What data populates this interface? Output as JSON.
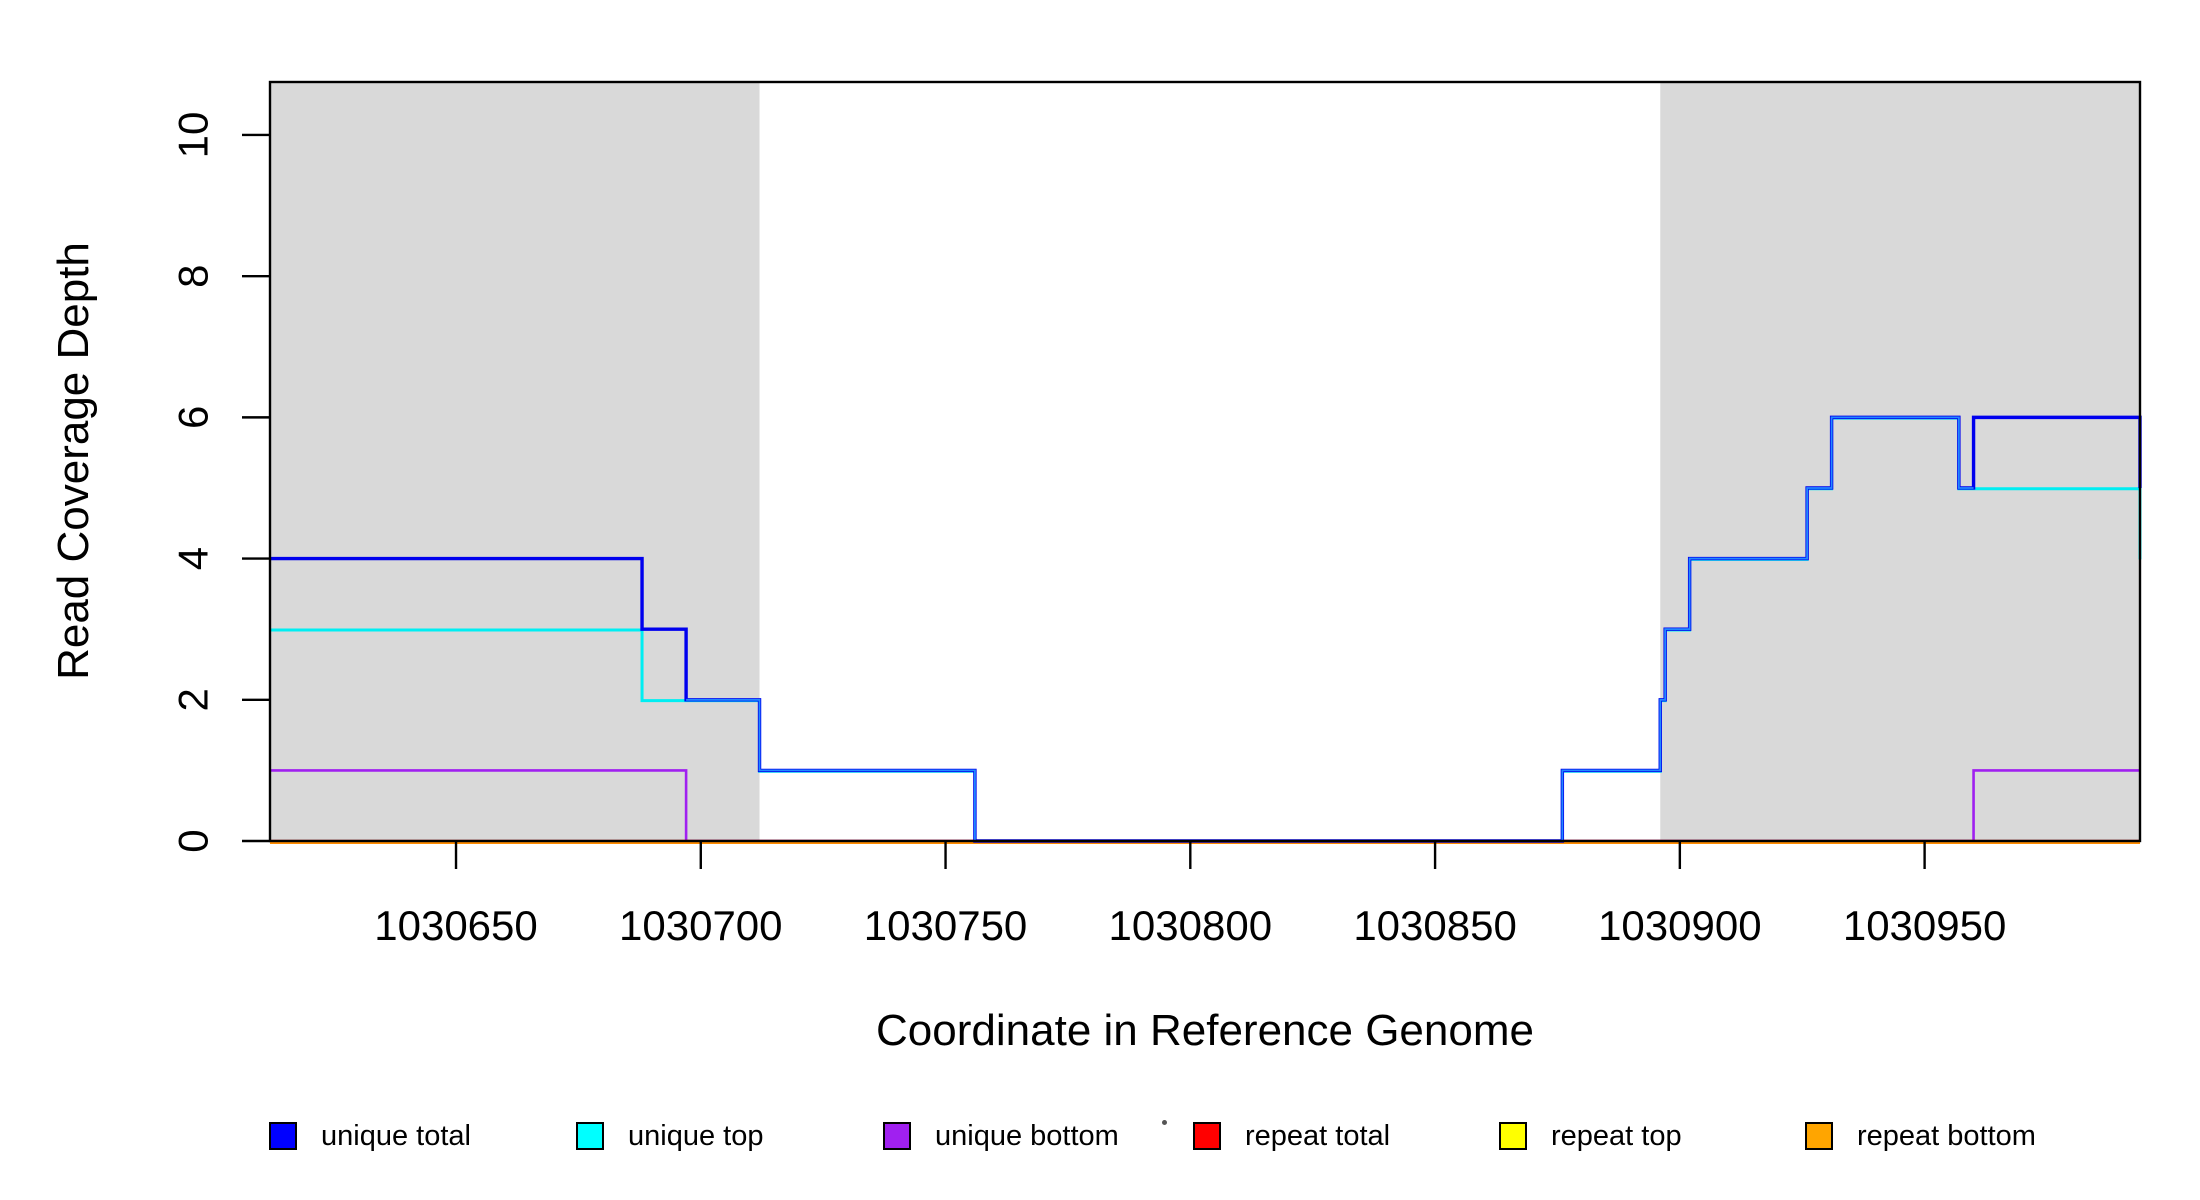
{
  "chart_data": {
    "type": "line",
    "subtype": "step",
    "title": "",
    "xlabel": "Coordinate in Reference Genome",
    "ylabel": "Read Coverage Depth",
    "xlim": [
      1030612,
      1030994
    ],
    "ymax": 10.75,
    "grid": false,
    "legend_position": "bottom",
    "x_ticks": {
      "values": [
        1030650,
        1030700,
        1030750,
        1030800,
        1030850,
        1030900,
        1030950
      ],
      "labels": [
        "1030650",
        "1030700",
        "1030750",
        "1030800",
        "1030850",
        "1030900",
        "1030950"
      ]
    },
    "y_ticks": {
      "values": [
        0,
        2,
        4,
        6,
        8,
        10
      ],
      "labels": [
        "0",
        "2",
        "4",
        "6",
        "8",
        "10"
      ]
    },
    "shade_color": "#D9D9D9",
    "shaded_regions": [
      {
        "x0": 1030612,
        "x1": 1030712
      },
      {
        "x0": 1030896,
        "x1": 1030994
      }
    ],
    "overlap_color": "#2288FF",
    "series": [
      {
        "name": "unique total",
        "color": "#0000EE",
        "width": 3.4,
        "dy": 0,
        "steps": [
          [
            1030612,
            4
          ],
          [
            1030688,
            3
          ],
          [
            1030697,
            2
          ],
          [
            1030712,
            1
          ],
          [
            1030756,
            0
          ],
          [
            1030876,
            1
          ],
          [
            1030896,
            2
          ],
          [
            1030897,
            3
          ],
          [
            1030902,
            4
          ],
          [
            1030926,
            5
          ],
          [
            1030931,
            6
          ],
          [
            1030957,
            5
          ],
          [
            1030960,
            6
          ],
          [
            1030994,
            5
          ]
        ]
      },
      {
        "name": "unique top",
        "color": "#00EEF2",
        "width": 3.0,
        "dy": 0.8,
        "steps": [
          [
            1030612,
            3
          ],
          [
            1030688,
            2
          ],
          [
            1030712,
            1
          ],
          [
            1030756,
            0
          ],
          [
            1030876,
            1
          ],
          [
            1030896,
            2
          ],
          [
            1030897,
            3
          ],
          [
            1030902,
            4
          ],
          [
            1030926,
            5
          ],
          [
            1030931,
            6
          ],
          [
            1030957,
            5
          ],
          [
            1030994,
            4
          ]
        ]
      },
      {
        "name": "unique bottom",
        "color": "#A020F0",
        "width": 2.6,
        "dy": 0,
        "steps": [
          [
            1030612,
            1
          ],
          [
            1030697,
            0
          ],
          [
            1030960,
            1
          ]
        ]
      },
      {
        "name": "repeat total",
        "color": "#DD2525",
        "width": 2.4,
        "dy": 0,
        "steps": [
          [
            1030612,
            0
          ]
        ]
      },
      {
        "name": "repeat top",
        "color": "#FFEE00",
        "width": 2.4,
        "dy": 1.0,
        "steps": [
          [
            1030612,
            0
          ]
        ]
      },
      {
        "name": "repeat bottom",
        "color": "#FF8C00",
        "width": 2.8,
        "dy": 1.6,
        "steps": [
          [
            1030612,
            0
          ]
        ]
      }
    ],
    "legend": [
      {
        "label": "unique total",
        "color": "#0000FF"
      },
      {
        "label": "unique top",
        "color": "#00FFFF"
      },
      {
        "label": "unique bottom",
        "color": "#A020F0"
      },
      {
        "label": "repeat total",
        "color": "#FF0000"
      },
      {
        "label": "repeat top",
        "color": "#FFFF00"
      },
      {
        "label": "repeat bottom",
        "color": "#FFA500"
      }
    ],
    "stray_dot": "·"
  }
}
